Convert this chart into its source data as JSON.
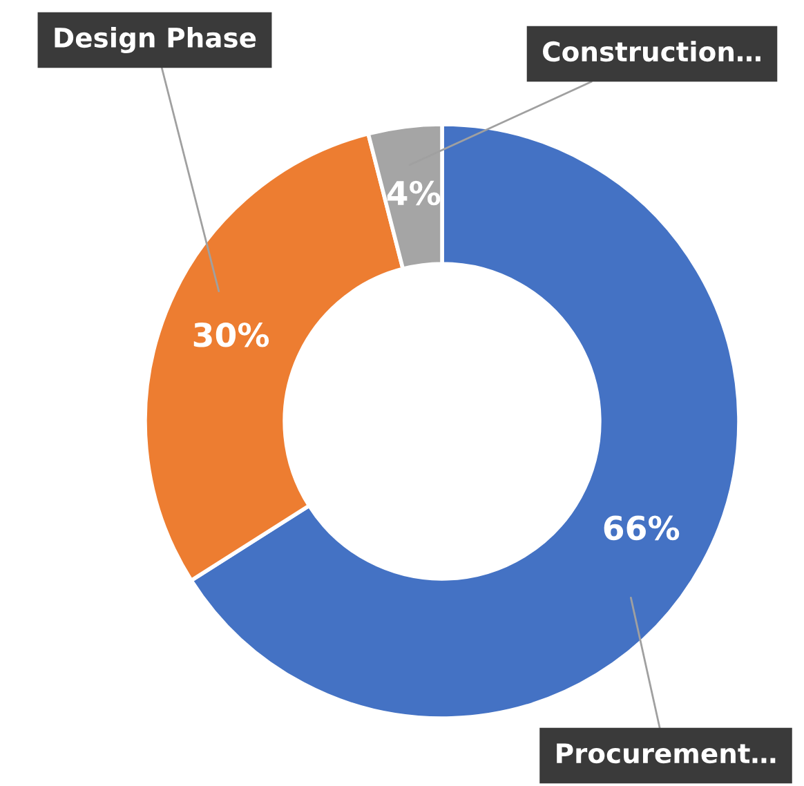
{
  "chart_data": {
    "type": "donut",
    "categories": [
      "Procurement…",
      "Design Phase",
      "Construction…"
    ],
    "values": [
      66,
      30,
      4
    ],
    "colors": [
      "#4472c4",
      "#ed7d31",
      "#a5a5a5"
    ],
    "value_labels": [
      "66%",
      "30%",
      "4%"
    ],
    "legend": false
  }
}
